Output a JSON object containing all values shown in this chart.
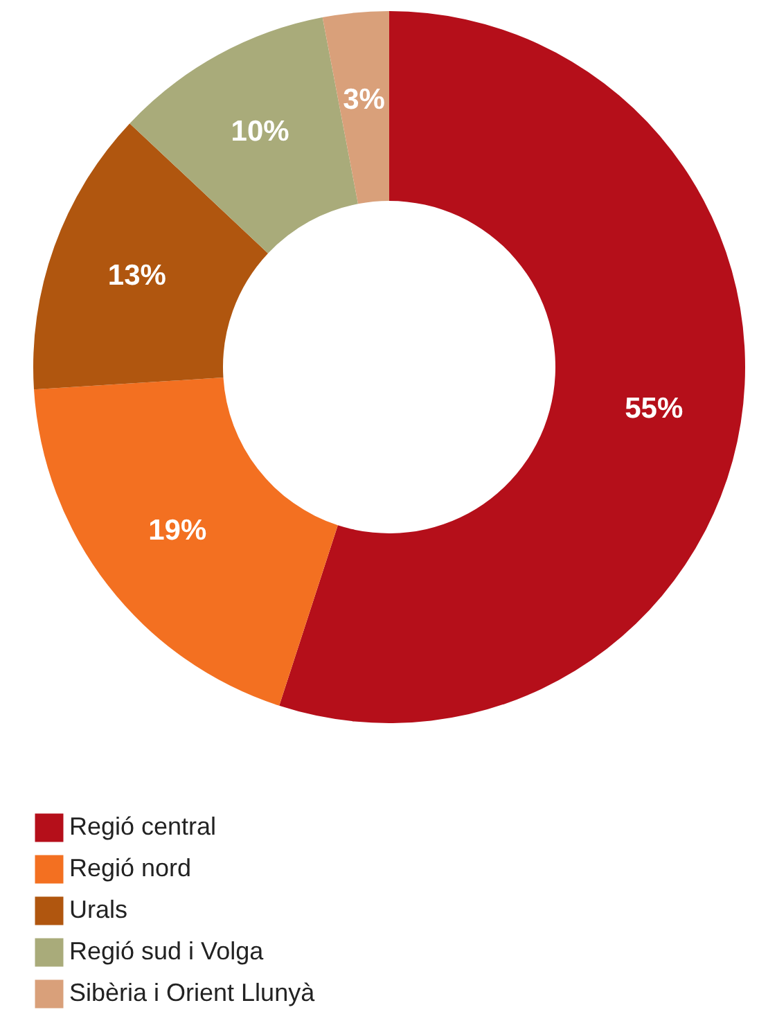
{
  "chart_data": {
    "type": "donut",
    "categories": [
      "Regió central",
      "Regió nord",
      "Urals",
      "Regió sud i Volga",
      "Sibèria i Orient Llunyà"
    ],
    "values": [
      55,
      19,
      13,
      10,
      3
    ],
    "colors": [
      "#b50f1a",
      "#f37021",
      "#b0560f",
      "#a9ab7a",
      "#d9a07a"
    ],
    "value_labels": [
      "55%",
      "19%",
      "13%",
      "10%",
      "3%"
    ],
    "legend": "bottom left"
  }
}
